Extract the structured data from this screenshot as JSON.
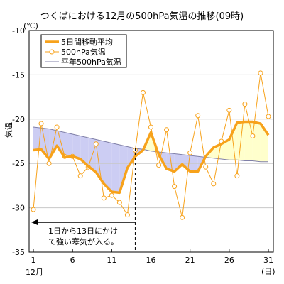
{
  "chart_data": {
    "type": "line",
    "title": "つくばにおける12月の500hPa気温の推移(09時)",
    "ylabel": "気温",
    "unit_label": "(℃)",
    "x_unit_label": "(日)",
    "month_label": "12月",
    "ylim": [
      -35,
      -10
    ],
    "xlim": [
      1,
      31
    ],
    "yticks": [
      -35,
      -30,
      -25,
      -20,
      -15,
      -10
    ],
    "xticks": [
      1,
      6,
      11,
      16,
      21,
      26,
      31
    ],
    "grid": "horizontal",
    "legend_position": "top-left",
    "x": [
      1,
      2,
      3,
      4,
      5,
      6,
      7,
      8,
      9,
      10,
      11,
      12,
      13,
      14,
      15,
      16,
      17,
      18,
      19,
      20,
      21,
      22,
      23,
      24,
      25,
      26,
      27,
      28,
      29,
      30,
      31
    ],
    "series": [
      {
        "name": "5日間移動平均",
        "color": "#f7a21b",
        "style": "thick-line",
        "values": [
          -23.5,
          -23.4,
          -24.5,
          -23.0,
          -24.3,
          -24.2,
          -24.5,
          -25.3,
          -26.0,
          -27.3,
          -28.2,
          -28.3,
          -25.5,
          -24.2,
          -23.5,
          -21.5,
          -24.0,
          -25.6,
          -25.9,
          -25.1,
          -25.9,
          -25.9,
          -24.2,
          -23.2,
          -22.8,
          -22.3,
          -20.4,
          -20.3,
          -20.3,
          -20.5,
          -21.8
        ]
      },
      {
        "name": "500hPa気温",
        "color": "#f7a21b",
        "style": "line-with-circle-markers",
        "values": [
          -30.2,
          -20.5,
          -25.0,
          -20.9,
          -24.2,
          -24.2,
          -26.4,
          -25.4,
          -22.8,
          -28.9,
          -28.6,
          -29.4,
          -30.8,
          -23.5,
          -17.0,
          -20.9,
          -25.2,
          -21.2,
          -27.6,
          -31.1,
          -23.8,
          -19.6,
          -25.4,
          -27.3,
          -22.5,
          -19.0,
          -26.4,
          -18.3,
          -21.9,
          -14.8,
          -19.7
        ]
      },
      {
        "name": "平年500hPa気温",
        "color": "#8080a8",
        "style": "thin-line",
        "values": [
          -20.9,
          -21.0,
          -21.1,
          -21.3,
          -21.5,
          -21.7,
          -21.9,
          -22.1,
          -22.3,
          -22.5,
          -22.7,
          -22.9,
          -23.1,
          -23.3,
          -23.4,
          -23.6,
          -23.7,
          -23.8,
          -23.9,
          -24.0,
          -24.1,
          -24.2,
          -24.3,
          -24.4,
          -24.5,
          -24.6,
          -24.6,
          -24.7,
          -24.7,
          -24.8,
          -24.8
        ]
      }
    ],
    "fill_below_normal_color": "#cccdf3",
    "fill_above_normal_color": "#ffffcc",
    "annotation": {
      "line1": "1日から13日にかけ",
      "line2": "て強い寒気が入る。",
      "x_start": 1,
      "x_end": 14
    }
  }
}
